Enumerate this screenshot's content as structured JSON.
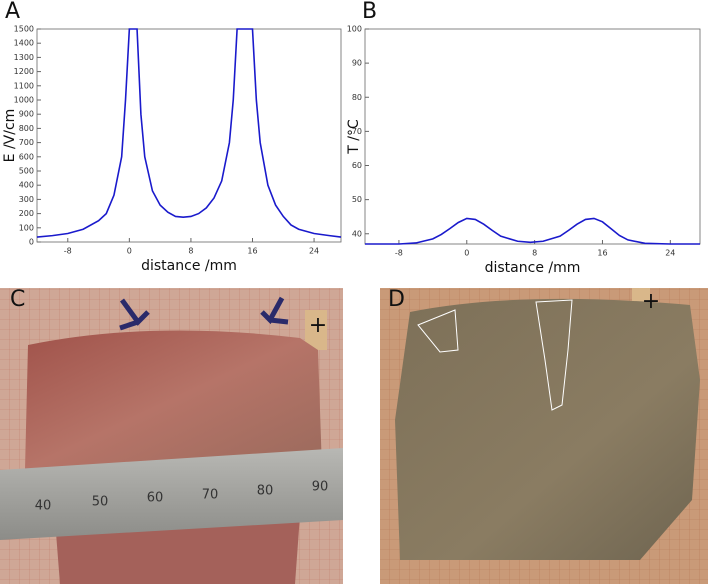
{
  "chart_data": [
    {
      "type": "line",
      "panel": "A",
      "x_label": "distance /mm",
      "y_label": "E /V/cm",
      "x": [
        -12,
        -10,
        -8,
        -6,
        -4,
        -3,
        -2,
        -1,
        -0.5,
        0,
        1,
        1.5,
        2,
        3,
        4,
        5,
        6,
        7,
        8,
        9,
        10,
        11,
        12,
        13,
        13.5,
        14,
        15,
        16,
        16.5,
        17,
        18,
        19,
        20,
        21,
        22,
        24,
        26,
        27.5
      ],
      "series": [
        {
          "color": "#1a1acc",
          "values": [
            35,
            45,
            60,
            90,
            150,
            200,
            330,
            600,
            1000,
            1500,
            1500,
            900,
            600,
            360,
            260,
            210,
            180,
            175,
            180,
            200,
            240,
            310,
            430,
            700,
            1000,
            1500,
            1500,
            1500,
            1000,
            700,
            400,
            260,
            180,
            120,
            90,
            60,
            45,
            35
          ]
        }
      ],
      "xlim": [
        -12,
        27.5
      ],
      "xticks": [
        -8,
        0,
        8,
        16,
        24
      ],
      "ylim": [
        0,
        1500
      ],
      "yticks": [
        0,
        100,
        200,
        300,
        400,
        500,
        600,
        700,
        800,
        900,
        1000,
        1100,
        1200,
        1300,
        1400,
        1500
      ]
    },
    {
      "type": "line",
      "panel": "B",
      "x_label": "distance /mm",
      "y_label": "T /°C",
      "x": [
        -12,
        -8,
        -6,
        -4,
        -3,
        -2,
        -1,
        0,
        1,
        2,
        3,
        4,
        6,
        7.5,
        9,
        11,
        12,
        13,
        14,
        15,
        16,
        17,
        18,
        19,
        21,
        24,
        27.5
      ],
      "series": [
        {
          "color": "#1a1acc",
          "values": [
            37,
            37,
            37.3,
            38.5,
            39.8,
            41.5,
            43.3,
            44.5,
            44.2,
            42.8,
            41,
            39.3,
            37.8,
            37.5,
            37.8,
            39.3,
            41,
            42.8,
            44.2,
            44.5,
            43.5,
            41.5,
            39.5,
            38.2,
            37.2,
            37,
            37
          ]
        }
      ],
      "xlim": [
        -12,
        27.5
      ],
      "xticks": [
        -8,
        0,
        8,
        16,
        24
      ],
      "ylim": [
        37,
        100
      ],
      "yticks": [
        40,
        50,
        60,
        70,
        80,
        90,
        100
      ]
    }
  ],
  "photos": {
    "c": {
      "panel": "C",
      "ruler": [
        "40",
        "50",
        "60",
        "70",
        "80",
        "90"
      ],
      "marker": "+"
    },
    "d": {
      "panel": "D",
      "marker": "+"
    }
  }
}
